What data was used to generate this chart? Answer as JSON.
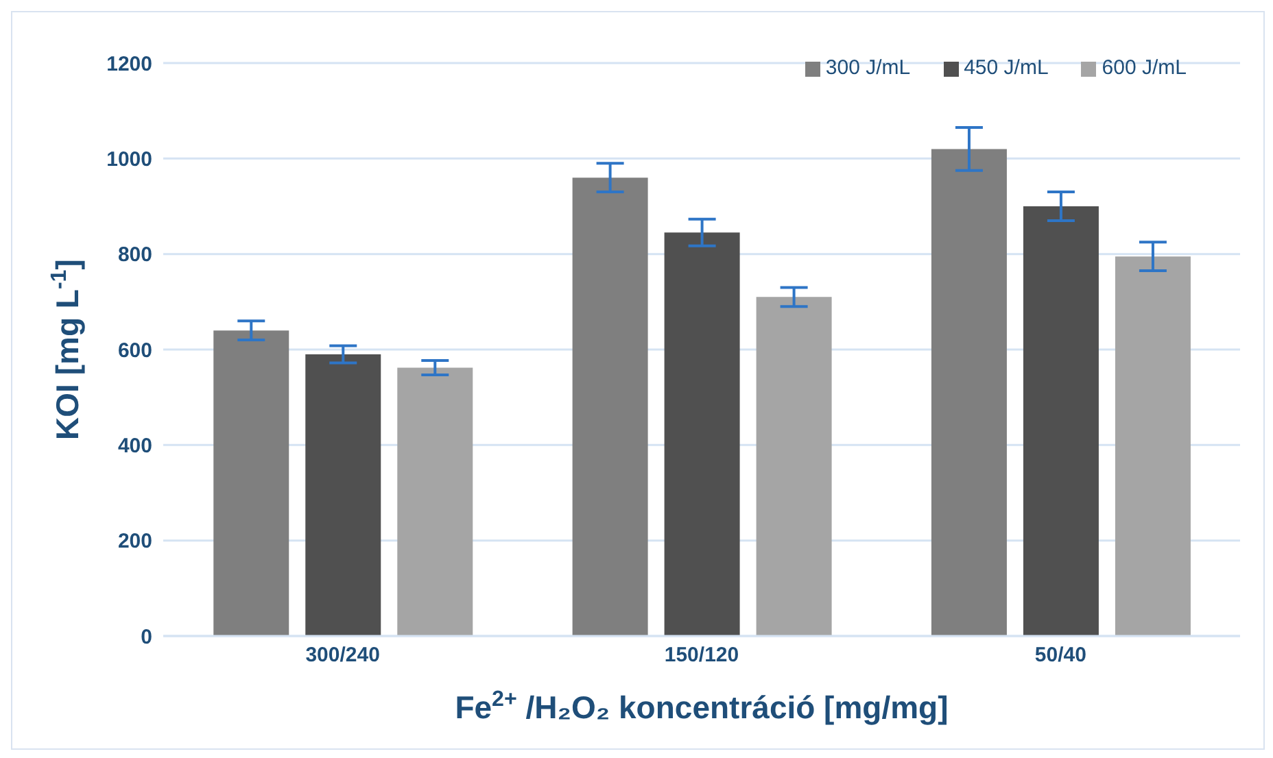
{
  "chart_data": {
    "type": "bar",
    "xlabel": "Fe$^{2+}$ /H₂O₂ koncentráció [mg/mg]",
    "ylabel": "KOI [mg L$^{-1}$]",
    "categories": [
      "300/240",
      "150/120",
      "50/40"
    ],
    "series": [
      {
        "name": "300 J/mL",
        "color": "#7f7f7f",
        "values": [
          640,
          960,
          1020
        ],
        "errors": [
          20,
          30,
          45
        ]
      },
      {
        "name": "450 J/mL",
        "color": "#505050",
        "values": [
          590,
          845,
          900
        ],
        "errors": [
          18,
          28,
          30
        ]
      },
      {
        "name": "600 J/mL",
        "color": "#a5a5a5",
        "values": [
          562,
          710,
          795
        ],
        "errors": [
          15,
          20,
          30
        ]
      }
    ],
    "ylim": [
      0,
      1200
    ],
    "yticks": [
      0,
      200,
      400,
      600,
      800,
      1000,
      1200
    ],
    "grid": "y",
    "legend": "top right"
  }
}
